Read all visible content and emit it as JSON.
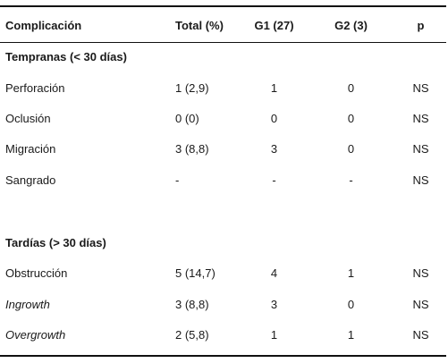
{
  "table": {
    "headers": {
      "complicacion": "Complicación",
      "total": "Total (%)",
      "g1": "G1 (27)",
      "g2": "G2 (3)",
      "p": "p"
    },
    "sections": [
      {
        "title": "Tempranas (< 30 días)",
        "rows": [
          {
            "label": "Perforación",
            "total": "1 (2,9)",
            "g1": "1",
            "g2": "0",
            "p": "NS",
            "italic": false
          },
          {
            "label": "Oclusión",
            "total": "0 (0)",
            "g1": "0",
            "g2": "0",
            "p": "NS",
            "italic": false
          },
          {
            "label": "Migración",
            "total": "3 (8,8)",
            "g1": "3",
            "g2": "0",
            "p": "NS",
            "italic": false
          },
          {
            "label": "Sangrado",
            "total": "-",
            "g1": "-",
            "g2": "-",
            "p": "NS",
            "italic": false
          }
        ]
      },
      {
        "title": "Tardías (> 30 días)",
        "rows": [
          {
            "label": "Obstrucción",
            "total": "5 (14,7)",
            "g1": "4",
            "g2": "1",
            "p": "NS",
            "italic": false
          },
          {
            "label": "Ingrowth",
            "total": "3 (8,8)",
            "g1": "3",
            "g2": "0",
            "p": "NS",
            "italic": true
          },
          {
            "label": "Overgrowth",
            "total": "2 (5,8)",
            "g1": "1",
            "g2": "1",
            "p": "NS",
            "italic": true
          }
        ]
      }
    ]
  }
}
